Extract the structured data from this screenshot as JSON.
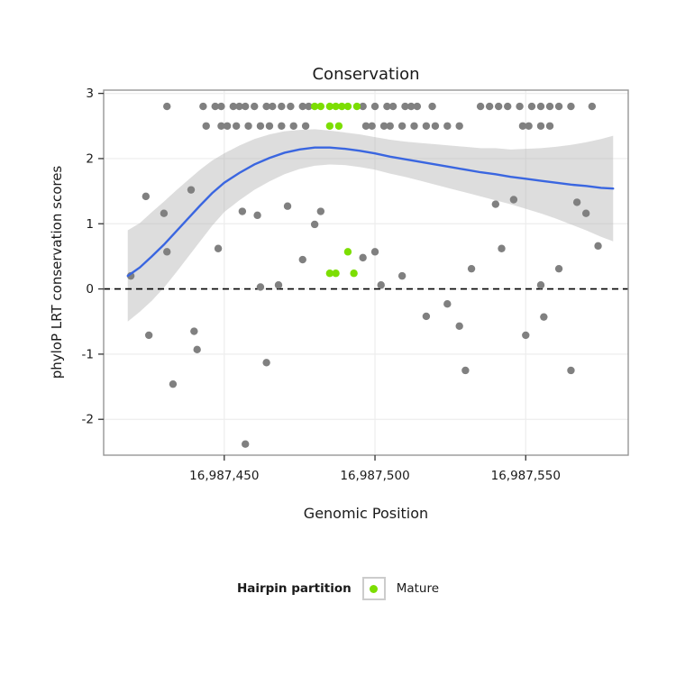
{
  "chart_data": {
    "type": "scatter",
    "title": "Conservation",
    "xlabel": "Genomic Position",
    "ylabel": "phyloP LRT conservation scores",
    "xlim": [
      16987410,
      16987584
    ],
    "ylim": [
      -2.55,
      3.05
    ],
    "x_ticks": [
      {
        "value": 16987450,
        "label": "16,987,450"
      },
      {
        "value": 16987500,
        "label": "16,987,500"
      },
      {
        "value": 16987550,
        "label": "16,987,550"
      }
    ],
    "y_ticks": [
      {
        "value": -2,
        "label": "-2"
      },
      {
        "value": -1,
        "label": "-1"
      },
      {
        "value": 0,
        "label": "0"
      },
      {
        "value": 1,
        "label": "1"
      },
      {
        "value": 2,
        "label": "2"
      },
      {
        "value": 3,
        "label": "3"
      }
    ],
    "hline": 0,
    "grid": true,
    "legend_position": "bottom",
    "colors": {
      "point_other": "#808080",
      "point_mature": "#7CDE02",
      "smooth_line": "#3A66E0",
      "ribbon": "#AFAFAF",
      "grid_major": "#EDEDED",
      "panel_border": "#969696",
      "hline": "#000000",
      "tick": "#333333",
      "text": "#1a1a1a"
    },
    "legend": {
      "title": "Hairpin partition",
      "items": [
        {
          "label": "Mature",
          "color": "#7CDE02"
        }
      ]
    },
    "points_other": [
      [
        16987431,
        2.8
      ],
      [
        16987443,
        2.8
      ],
      [
        16987447,
        2.8
      ],
      [
        16987449,
        2.8
      ],
      [
        16987453,
        2.8
      ],
      [
        16987455,
        2.8
      ],
      [
        16987457,
        2.8
      ],
      [
        16987460,
        2.8
      ],
      [
        16987464,
        2.8
      ],
      [
        16987466,
        2.8
      ],
      [
        16987469,
        2.8
      ],
      [
        16987472,
        2.8
      ],
      [
        16987476,
        2.8
      ],
      [
        16987478,
        2.8
      ],
      [
        16987496,
        2.8
      ],
      [
        16987500,
        2.8
      ],
      [
        16987504,
        2.8
      ],
      [
        16987506,
        2.8
      ],
      [
        16987510,
        2.8
      ],
      [
        16987512,
        2.8
      ],
      [
        16987514,
        2.8
      ],
      [
        16987519,
        2.8
      ],
      [
        16987535,
        2.8
      ],
      [
        16987538,
        2.8
      ],
      [
        16987541,
        2.8
      ],
      [
        16987544,
        2.8
      ],
      [
        16987548,
        2.8
      ],
      [
        16987552,
        2.8
      ],
      [
        16987555,
        2.8
      ],
      [
        16987558,
        2.8
      ],
      [
        16987561,
        2.8
      ],
      [
        16987565,
        2.8
      ],
      [
        16987572,
        2.8
      ],
      [
        16987444,
        2.5
      ],
      [
        16987449,
        2.5
      ],
      [
        16987451,
        2.5
      ],
      [
        16987454,
        2.5
      ],
      [
        16987458,
        2.5
      ],
      [
        16987462,
        2.5
      ],
      [
        16987465,
        2.5
      ],
      [
        16987469,
        2.5
      ],
      [
        16987473,
        2.5
      ],
      [
        16987477,
        2.5
      ],
      [
        16987497,
        2.5
      ],
      [
        16987499,
        2.5
      ],
      [
        16987503,
        2.5
      ],
      [
        16987505,
        2.5
      ],
      [
        16987509,
        2.5
      ],
      [
        16987513,
        2.5
      ],
      [
        16987517,
        2.5
      ],
      [
        16987520,
        2.5
      ],
      [
        16987524,
        2.5
      ],
      [
        16987528,
        2.5
      ],
      [
        16987549,
        2.5
      ],
      [
        16987551,
        2.5
      ],
      [
        16987555,
        2.5
      ],
      [
        16987558,
        2.5
      ],
      [
        16987419,
        0.2
      ],
      [
        16987424,
        1.42
      ],
      [
        16987425,
        -0.71
      ],
      [
        16987430,
        1.16
      ],
      [
        16987431,
        0.57
      ],
      [
        16987433,
        -1.46
      ],
      [
        16987439,
        1.52
      ],
      [
        16987440,
        -0.65
      ],
      [
        16987441,
        -0.93
      ],
      [
        16987448,
        0.62
      ],
      [
        16987456,
        1.19
      ],
      [
        16987457,
        -2.38
      ],
      [
        16987461,
        1.13
      ],
      [
        16987462,
        0.03
      ],
      [
        16987464,
        -1.13
      ],
      [
        16987468,
        0.06
      ],
      [
        16987471,
        1.27
      ],
      [
        16987476,
        0.45
      ],
      [
        16987480,
        0.99
      ],
      [
        16987482,
        1.19
      ],
      [
        16987496,
        0.48
      ],
      [
        16987500,
        0.57
      ],
      [
        16987502,
        0.06
      ],
      [
        16987509,
        0.2
      ],
      [
        16987517,
        -0.42
      ],
      [
        16987524,
        -0.23
      ],
      [
        16987528,
        -0.57
      ],
      [
        16987530,
        -1.25
      ],
      [
        16987532,
        0.31
      ],
      [
        16987540,
        1.3
      ],
      [
        16987542,
        0.62
      ],
      [
        16987546,
        1.37
      ],
      [
        16987550,
        -0.71
      ],
      [
        16987555,
        0.06
      ],
      [
        16987556,
        -0.43
      ],
      [
        16987561,
        0.31
      ],
      [
        16987565,
        -1.25
      ],
      [
        16987567,
        1.33
      ],
      [
        16987570,
        1.16
      ],
      [
        16987574,
        0.66
      ]
    ],
    "points_mature": [
      [
        16987480,
        2.8
      ],
      [
        16987482,
        2.8
      ],
      [
        16987485,
        2.8
      ],
      [
        16987487,
        2.8
      ],
      [
        16987489,
        2.8
      ],
      [
        16987491,
        2.8
      ],
      [
        16987494,
        2.8
      ],
      [
        16987485,
        2.5
      ],
      [
        16987488,
        2.5
      ],
      [
        16987485,
        0.24
      ],
      [
        16987487,
        0.24
      ],
      [
        16987491,
        0.57
      ],
      [
        16987493,
        0.24
      ]
    ],
    "smooth": {
      "x": [
        16987418,
        16987422,
        16987426,
        16987430,
        16987434,
        16987438,
        16987442,
        16987446,
        16987450,
        16987455,
        16987460,
        16987465,
        16987470,
        16987475,
        16987480,
        16987485,
        16987490,
        16987495,
        16987500,
        16987505,
        16987510,
        16987515,
        16987520,
        16987525,
        16987530,
        16987535,
        16987540,
        16987545,
        16987550,
        16987555,
        16987560,
        16987565,
        16987570,
        16987575,
        16987579
      ],
      "y": [
        0.2,
        0.33,
        0.5,
        0.68,
        0.88,
        1.08,
        1.28,
        1.47,
        1.63,
        1.78,
        1.91,
        2.01,
        2.09,
        2.14,
        2.17,
        2.17,
        2.15,
        2.12,
        2.08,
        2.03,
        1.99,
        1.95,
        1.91,
        1.87,
        1.83,
        1.79,
        1.76,
        1.72,
        1.69,
        1.66,
        1.63,
        1.6,
        1.58,
        1.55,
        1.54
      ],
      "lower": [
        -0.5,
        -0.35,
        -0.18,
        0.02,
        0.25,
        0.49,
        0.73,
        0.97,
        1.18,
        1.36,
        1.52,
        1.65,
        1.76,
        1.84,
        1.89,
        1.91,
        1.9,
        1.87,
        1.83,
        1.77,
        1.72,
        1.66,
        1.6,
        1.54,
        1.48,
        1.42,
        1.36,
        1.3,
        1.23,
        1.16,
        1.08,
        0.99,
        0.9,
        0.8,
        0.73
      ],
      "upper": [
        0.9,
        1.01,
        1.18,
        1.34,
        1.51,
        1.67,
        1.83,
        1.97,
        2.08,
        2.2,
        2.3,
        2.37,
        2.42,
        2.44,
        2.45,
        2.43,
        2.4,
        2.37,
        2.33,
        2.29,
        2.26,
        2.24,
        2.22,
        2.2,
        2.18,
        2.16,
        2.16,
        2.14,
        2.15,
        2.16,
        2.18,
        2.21,
        2.25,
        2.3,
        2.35
      ]
    }
  }
}
